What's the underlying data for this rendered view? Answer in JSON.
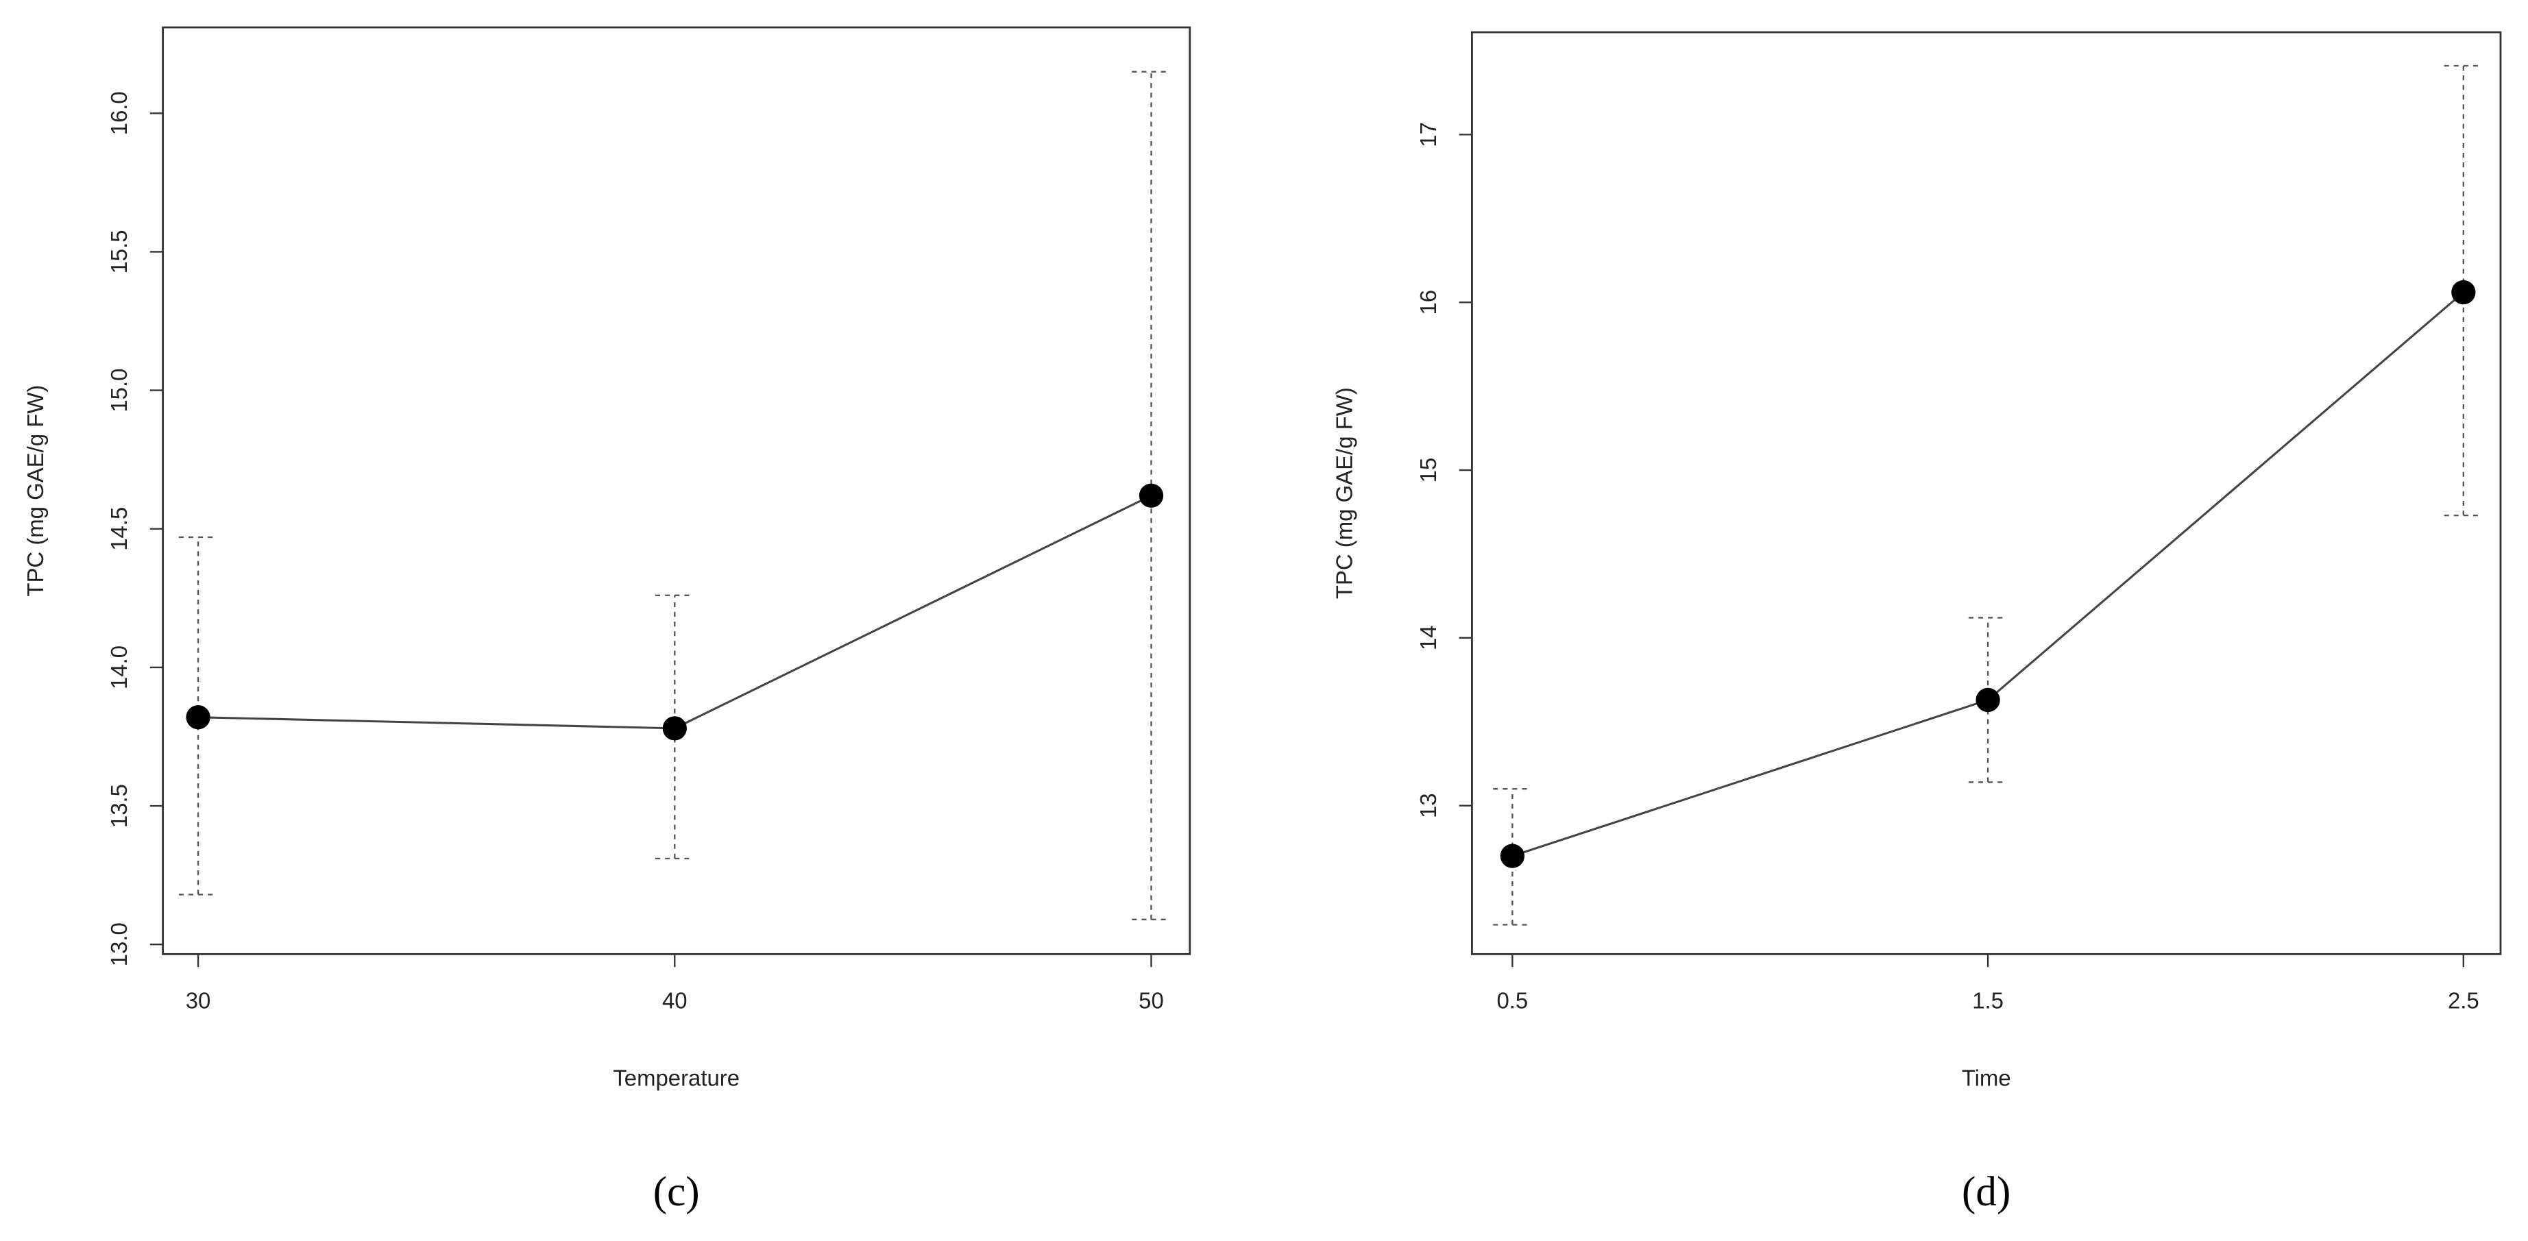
{
  "chart_data": [
    {
      "type": "line",
      "caption": "(c)",
      "x_label": "Temperature",
      "y_label": "TPC (mg GAE/g FW)",
      "x": [
        30,
        40,
        50
      ],
      "series": [
        {
          "color": "#000000",
          "values": [
            13.82,
            13.78,
            14.62
          ],
          "lower": [
            13.18,
            13.31,
            13.09
          ],
          "upper": [
            14.47,
            14.26,
            16.15
          ]
        }
      ],
      "xlim": [
        29.26,
        50.81
      ],
      "xticks": [
        30,
        40,
        50
      ],
      "ylim": [
        12.965,
        16.31
      ],
      "yticks": [
        {
          "value": 13.0,
          "label": "13.0"
        },
        {
          "value": 13.5,
          "label": "13.5"
        },
        {
          "value": 14.0,
          "label": "14.0"
        },
        {
          "value": 14.5,
          "label": "14.5"
        },
        {
          "value": 15.0,
          "label": "15.0"
        },
        {
          "value": 15.5,
          "label": "15.5"
        },
        {
          "value": 16.0,
          "label": "16.0"
        }
      ]
    },
    {
      "type": "line",
      "caption": "(d)",
      "x_label": "Time",
      "y_label": "TPC (mg GAE/g FW)",
      "x": [
        0.5,
        1.5,
        2.5
      ],
      "series": [
        {
          "color": "#000000",
          "values": [
            12.7,
            13.63,
            16.06
          ],
          "lower": [
            12.29,
            13.14,
            14.73
          ],
          "upper": [
            13.1,
            14.12,
            17.41
          ]
        }
      ],
      "xlim": [
        0.415,
        2.578
      ],
      "xticks": [
        0.5,
        1.5,
        2.5
      ],
      "ylim": [
        12.115,
        17.61
      ],
      "yticks": [
        13,
        14,
        15,
        16,
        17
      ]
    }
  ]
}
